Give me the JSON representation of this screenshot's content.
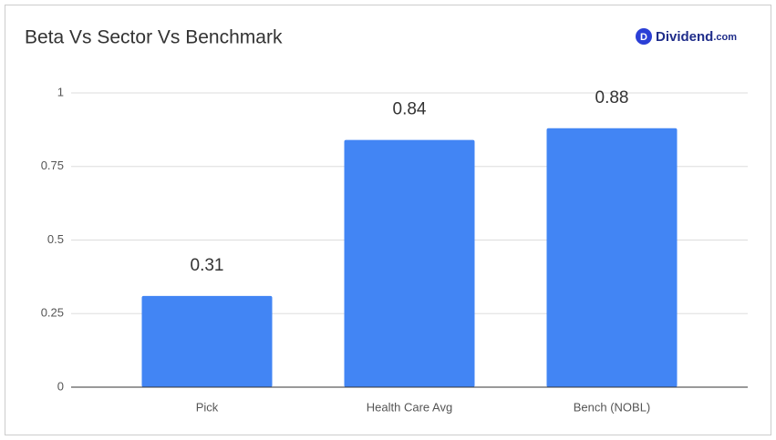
{
  "chart_data": {
    "type": "bar",
    "title": "Beta Vs Sector Vs Benchmark",
    "logo": {
      "icon": "D",
      "name": "Dividend",
      "suffix": ".com"
    },
    "categories": [
      "Pick",
      "Health Care Avg",
      "Bench (NOBL)"
    ],
    "values": [
      0.31,
      0.84,
      0.88
    ],
    "color": "#4285f4",
    "ylim": [
      0,
      1
    ],
    "yticks": [
      0,
      0.25,
      0.5,
      0.75,
      1
    ],
    "grid": true
  }
}
